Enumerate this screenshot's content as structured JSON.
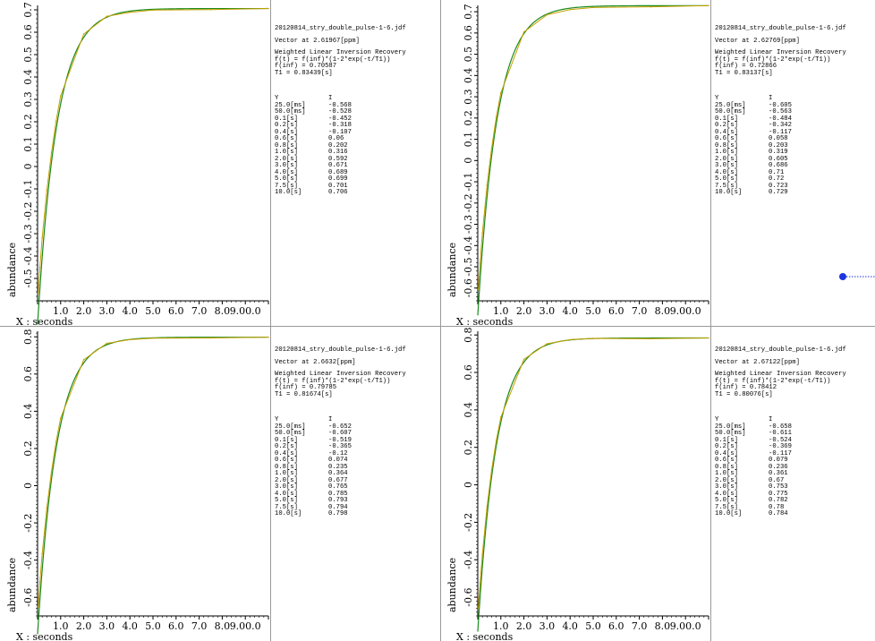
{
  "chart_data": [
    {
      "type": "line",
      "ylabel": "abundance",
      "xlabel": "X : seconds",
      "xticks": [
        "1.0",
        "2.0",
        "3.0",
        "4.0",
        "5.0",
        "6.0",
        "7.0",
        "8.0",
        "9.00.0"
      ],
      "yticks": [
        "0.7",
        "0.6",
        "0.5",
        "0.4",
        "0.3",
        "0.2",
        "0.1",
        "0",
        "-0.1",
        "-0.2",
        "-0.3",
        "-0.4",
        "-0.5"
      ],
      "yticks_values": [
        0.7,
        0.6,
        0.5,
        0.4,
        0.3,
        0.2,
        0.1,
        0,
        -0.1,
        -0.2,
        -0.3,
        -0.4,
        -0.5
      ],
      "ylim": [
        -0.6,
        0.72
      ],
      "xlim": [
        0,
        10
      ],
      "file": "20120814_stry_double_pulse-1-6.jdf",
      "vector": "Vector at 2.61967[ppm]",
      "method": "Weighted Linear Inversion Recovery",
      "formula": "f(t) = f(inf)*(1-2*exp(-t/T1))",
      "finf": "f(inf) = 0.70587",
      "t1": "T1 = 0.83439[s]",
      "fit": {
        "finf": 0.70587,
        "t1": 0.83439
      },
      "col_y": "Y",
      "col_i": "I",
      "rows": [
        {
          "y": "25.0[ms]",
          "i": "-0.568"
        },
        {
          "y": "50.0[ms]",
          "i": "-0.528"
        },
        {
          "y": "0.1[s]",
          "i": "-0.452"
        },
        {
          "y": "0.2[s]",
          "i": "-0.318"
        },
        {
          "y": "0.4[s]",
          "i": "-0.107"
        },
        {
          "y": "0.6[s]",
          "i": "0.06"
        },
        {
          "y": "0.8[s]",
          "i": "0.202"
        },
        {
          "y": "1.0[s]",
          "i": "0.316"
        },
        {
          "y": "2.0[s]",
          "i": "0.592"
        },
        {
          "y": "3.0[s]",
          "i": "0.671"
        },
        {
          "y": "4.0[s]",
          "i": "0.689"
        },
        {
          "y": "5.0[s]",
          "i": "0.699"
        },
        {
          "y": "7.5[s]",
          "i": "0.701"
        },
        {
          "y": "10.0[s]",
          "i": "0.706"
        }
      ],
      "points": [
        [
          0.025,
          -0.568
        ],
        [
          0.05,
          -0.528
        ],
        [
          0.1,
          -0.452
        ],
        [
          0.2,
          -0.318
        ],
        [
          0.4,
          -0.107
        ],
        [
          0.6,
          0.06
        ],
        [
          0.8,
          0.202
        ],
        [
          1.0,
          0.316
        ],
        [
          2.0,
          0.592
        ],
        [
          3.0,
          0.671
        ],
        [
          4.0,
          0.689
        ],
        [
          5.0,
          0.699
        ],
        [
          7.5,
          0.701
        ],
        [
          10.0,
          0.706
        ]
      ]
    },
    {
      "type": "line",
      "ylabel": "abundance",
      "xlabel": "X : seconds",
      "xticks": [
        "1.0",
        "2.0",
        "3.0",
        "4.0",
        "5.0",
        "6.0",
        "7.0",
        "8.0",
        "9.00.0"
      ],
      "yticks": [
        "0.7",
        "0.6",
        "0.5",
        "0.4",
        "0.3",
        "0.2",
        "0.1",
        "0",
        "-0.1",
        "-0.2",
        "-0.3",
        "-0.4",
        "-0.5",
        "-0.6"
      ],
      "yticks_values": [
        0.7,
        0.6,
        0.5,
        0.4,
        0.3,
        0.2,
        0.1,
        0,
        -0.1,
        -0.2,
        -0.3,
        -0.4,
        -0.5,
        -0.6
      ],
      "ylim": [
        -0.66,
        0.73
      ],
      "xlim": [
        0,
        10
      ],
      "file": "20120814_stry_double_pulse-1-6.jdf",
      "vector": "Vector at 2.62769[ppm]",
      "method": "Weighted Linear Inversion Recovery",
      "formula": "f(t) = f(inf)*(1-2*exp(-t/T1))",
      "finf": "f(inf) = 0.72866",
      "t1": "T1 = 0.83137[s]",
      "fit": {
        "finf": 0.72866,
        "t1": 0.83137
      },
      "col_y": "Y",
      "col_i": "I",
      "rows": [
        {
          "y": "25.0[ms]",
          "i": "-0.605"
        },
        {
          "y": "50.0[ms]",
          "i": "-0.563"
        },
        {
          "y": "0.1[s]",
          "i": "-0.484"
        },
        {
          "y": "0.2[s]",
          "i": "-0.342"
        },
        {
          "y": "0.4[s]",
          "i": "-0.117"
        },
        {
          "y": "0.6[s]",
          "i": "0.058"
        },
        {
          "y": "0.8[s]",
          "i": "0.203"
        },
        {
          "y": "1.0[s]",
          "i": "0.319"
        },
        {
          "y": "2.0[s]",
          "i": "0.605"
        },
        {
          "y": "3.0[s]",
          "i": "0.686"
        },
        {
          "y": "4.0[s]",
          "i": "0.71"
        },
        {
          "y": "5.0[s]",
          "i": "0.72"
        },
        {
          "y": "7.5[s]",
          "i": "0.723"
        },
        {
          "y": "10.0[s]",
          "i": "0.729"
        }
      ],
      "points": [
        [
          0.025,
          -0.605
        ],
        [
          0.05,
          -0.563
        ],
        [
          0.1,
          -0.484
        ],
        [
          0.2,
          -0.342
        ],
        [
          0.4,
          -0.117
        ],
        [
          0.6,
          0.058
        ],
        [
          0.8,
          0.203
        ],
        [
          1.0,
          0.319
        ],
        [
          2.0,
          0.605
        ],
        [
          3.0,
          0.686
        ],
        [
          4.0,
          0.71
        ],
        [
          5.0,
          0.72
        ],
        [
          7.5,
          0.723
        ],
        [
          10.0,
          0.729
        ]
      ]
    },
    {
      "type": "line",
      "ylabel": "abundance",
      "xlabel": "X : seconds",
      "xticks": [
        "1.0",
        "2.0",
        "3.0",
        "4.0",
        "5.0",
        "6.0",
        "7.0",
        "8.0",
        "9.00.0"
      ],
      "yticks": [
        "0.8",
        "0.6",
        "0.4",
        "0.2",
        "0",
        "-0.2",
        "-0.4",
        "-0.6"
      ],
      "yticks_values": [
        0.8,
        0.6,
        0.4,
        0.2,
        0,
        -0.2,
        -0.4,
        -0.6
      ],
      "ylim": [
        -0.7,
        0.83
      ],
      "xlim": [
        0,
        10
      ],
      "file": "20120814_stry_double_pulse-1-6.jdf",
      "vector": "Vector at 2.6632[ppm]",
      "method": "Weighted Linear Inversion Recovery",
      "formula": "f(t) = f(inf)*(1-2*exp(-t/T1))",
      "finf": "f(inf) = 0.79785",
      "t1": "T1 = 0.81674[s]",
      "fit": {
        "finf": 0.79785,
        "t1": 0.81674
      },
      "col_y": "Y",
      "col_i": "I",
      "rows": [
        {
          "y": "25.0[ms]",
          "i": "-0.652"
        },
        {
          "y": "50.0[ms]",
          "i": "-0.607"
        },
        {
          "y": "0.1[s]",
          "i": "-0.519"
        },
        {
          "y": "0.2[s]",
          "i": "-0.365"
        },
        {
          "y": "0.4[s]",
          "i": "-0.12"
        },
        {
          "y": "0.6[s]",
          "i": "0.074"
        },
        {
          "y": "0.8[s]",
          "i": "0.235"
        },
        {
          "y": "1.0[s]",
          "i": "0.364"
        },
        {
          "y": "2.0[s]",
          "i": "0.677"
        },
        {
          "y": "3.0[s]",
          "i": "0.765"
        },
        {
          "y": "4.0[s]",
          "i": "0.785"
        },
        {
          "y": "5.0[s]",
          "i": "0.793"
        },
        {
          "y": "7.5[s]",
          "i": "0.794"
        },
        {
          "y": "10.0[s]",
          "i": "0.798"
        }
      ],
      "points": [
        [
          0.025,
          -0.652
        ],
        [
          0.05,
          -0.607
        ],
        [
          0.1,
          -0.519
        ],
        [
          0.2,
          -0.365
        ],
        [
          0.4,
          -0.12
        ],
        [
          0.6,
          0.074
        ],
        [
          0.8,
          0.235
        ],
        [
          1.0,
          0.364
        ],
        [
          2.0,
          0.677
        ],
        [
          3.0,
          0.765
        ],
        [
          4.0,
          0.785
        ],
        [
          5.0,
          0.793
        ],
        [
          7.5,
          0.794
        ],
        [
          10.0,
          0.798
        ]
      ]
    },
    {
      "type": "line",
      "ylabel": "abundance",
      "xlabel": "X : seconds",
      "xticks": [
        "1.0",
        "2.0",
        "3.0",
        "4.0",
        "5.0",
        "6.0",
        "7.0",
        "8.0",
        "9.00.0"
      ],
      "yticks": [
        "0.8",
        "0.6",
        "0.4",
        "0.2",
        "0",
        "-0.2",
        "-0.4",
        "-0.6"
      ],
      "yticks_values": [
        0.8,
        0.6,
        0.4,
        0.2,
        0,
        -0.2,
        -0.4,
        -0.6
      ],
      "ylim": [
        -0.7,
        0.82
      ],
      "xlim": [
        0,
        10
      ],
      "file": "20120814_stry_double_pulse-1-6.jdf",
      "vector": "Vector at 2.67122[ppm]",
      "method": "Weighted Linear Inversion Recovery",
      "formula": "f(t) = f(inf)*(1-2*exp(-t/T1))",
      "finf": "f(inf) = 0.78412",
      "t1": "T1 = 0.80076[s]",
      "fit": {
        "finf": 0.78412,
        "t1": 0.80076
      },
      "col_y": "Y",
      "col_i": "I",
      "rows": [
        {
          "y": "25.0[ms]",
          "i": "-0.658"
        },
        {
          "y": "50.0[ms]",
          "i": "-0.611"
        },
        {
          "y": "0.1[s]",
          "i": "-0.524"
        },
        {
          "y": "0.2[s]",
          "i": "-0.369"
        },
        {
          "y": "0.4[s]",
          "i": "-0.117"
        },
        {
          "y": "0.6[s]",
          "i": "0.079"
        },
        {
          "y": "0.8[s]",
          "i": "0.236"
        },
        {
          "y": "1.0[s]",
          "i": "0.361"
        },
        {
          "y": "2.0[s]",
          "i": "0.67"
        },
        {
          "y": "3.0[s]",
          "i": "0.753"
        },
        {
          "y": "4.0[s]",
          "i": "0.775"
        },
        {
          "y": "5.0[s]",
          "i": "0.782"
        },
        {
          "y": "7.5[s]",
          "i": "0.78"
        },
        {
          "y": "10.0[s]",
          "i": "0.784"
        }
      ],
      "points": [
        [
          0.025,
          -0.658
        ],
        [
          0.05,
          -0.611
        ],
        [
          0.1,
          -0.524
        ],
        [
          0.2,
          -0.369
        ],
        [
          0.4,
          -0.117
        ],
        [
          0.6,
          0.079
        ],
        [
          0.8,
          0.236
        ],
        [
          1.0,
          0.361
        ],
        [
          2.0,
          0.67
        ],
        [
          3.0,
          0.753
        ],
        [
          4.0,
          0.775
        ],
        [
          5.0,
          0.782
        ],
        [
          7.5,
          0.78
        ],
        [
          10.0,
          0.784
        ]
      ]
    }
  ],
  "colors": {
    "fit_line": "#1a8a1a",
    "data_line": "#c8a000",
    "axis": "#000000",
    "marker": "#1f35e0"
  }
}
